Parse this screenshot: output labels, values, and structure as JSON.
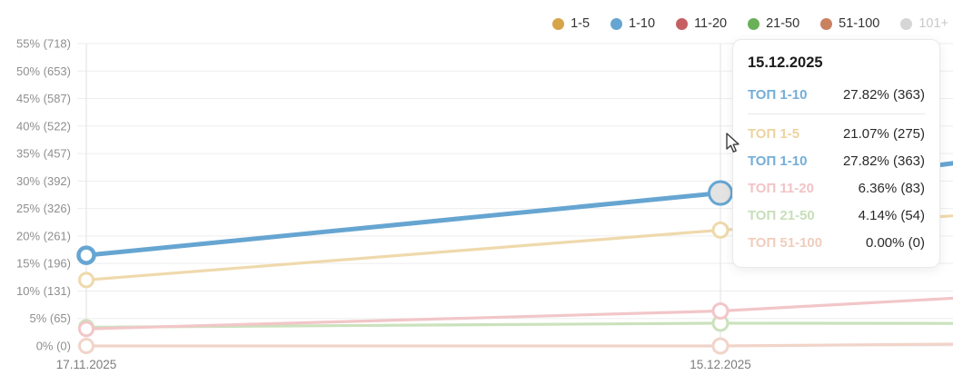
{
  "legend": {
    "items": [
      {
        "label": "1-5",
        "color": "#d6a449"
      },
      {
        "label": "1-10",
        "color": "#66a5d1"
      },
      {
        "label": "11-20",
        "color": "#c65f63"
      },
      {
        "label": "21-50",
        "color": "#6ab058"
      },
      {
        "label": "51-100",
        "color": "#c98160"
      },
      {
        "label": "101+",
        "color": "#d6d6d6"
      }
    ]
  },
  "tooltip": {
    "title": "15.12.2025",
    "highlight": {
      "label": "ТОП 1-10",
      "value": "27.82% (363)",
      "color": "#74aed8"
    },
    "rows": [
      {
        "label": "ТОП 1-5",
        "value": "21.07% (275)",
        "color": "#ecd4a0"
      },
      {
        "label": "ТОП 1-10",
        "value": "27.82% (363)",
        "color": "#74aed8"
      },
      {
        "label": "ТОП 11-20",
        "value": "6.36% (83)",
        "color": "#f2c3c5"
      },
      {
        "label": "ТОП 21-50",
        "value": "4.14% (54)",
        "color": "#c7dfba"
      },
      {
        "label": "ТОП 51-100",
        "value": "0.00% (0)",
        "color": "#f0cdbd"
      }
    ]
  },
  "chart_data": {
    "type": "line",
    "title": "",
    "xlabel": "",
    "ylabel": "",
    "ylim": [
      0,
      55
    ],
    "grid": true,
    "legend_position": "top-right",
    "x_tick_labels": [
      "17.11.2025",
      "15.12.2025"
    ],
    "x_points": [
      "17.11.2025",
      "15.12.2025",
      "right-edge-extrapolated"
    ],
    "y_ticks": [
      {
        "pct": 55,
        "label": "55% (718)"
      },
      {
        "pct": 50,
        "label": "50% (653)"
      },
      {
        "pct": 45,
        "label": "45% (587)"
      },
      {
        "pct": 40,
        "label": "40% (522)"
      },
      {
        "pct": 35,
        "label": "35% (457)"
      },
      {
        "pct": 30,
        "label": "30% (392)"
      },
      {
        "pct": 25,
        "label": "25% (326)"
      },
      {
        "pct": 20,
        "label": "20% (261)"
      },
      {
        "pct": 15,
        "label": "15% (196)"
      },
      {
        "pct": 10,
        "label": "10% (131)"
      },
      {
        "pct": 5,
        "label": "5% (65)"
      },
      {
        "pct": 0,
        "label": "0% (0)"
      }
    ],
    "series": [
      {
        "name": "51-100",
        "line_color": "#f1d4c9",
        "values": [
          0.0,
          0.0,
          0.35
        ],
        "active": false
      },
      {
        "name": "21-50",
        "line_color": "#cbe2bd",
        "values": [
          3.4,
          4.14,
          4.1
        ],
        "active": false
      },
      {
        "name": "11-20",
        "line_color": "#f2c6c8",
        "values": [
          3.1,
          6.36,
          8.8
        ],
        "active": false
      },
      {
        "name": "1-5",
        "line_color": "#efd9ac",
        "values": [
          12.0,
          21.07,
          23.8
        ],
        "active": false
      },
      {
        "name": "1-10",
        "line_color": "#66a5d1",
        "values": [
          16.5,
          27.82,
          33.5
        ],
        "active": true
      }
    ]
  }
}
